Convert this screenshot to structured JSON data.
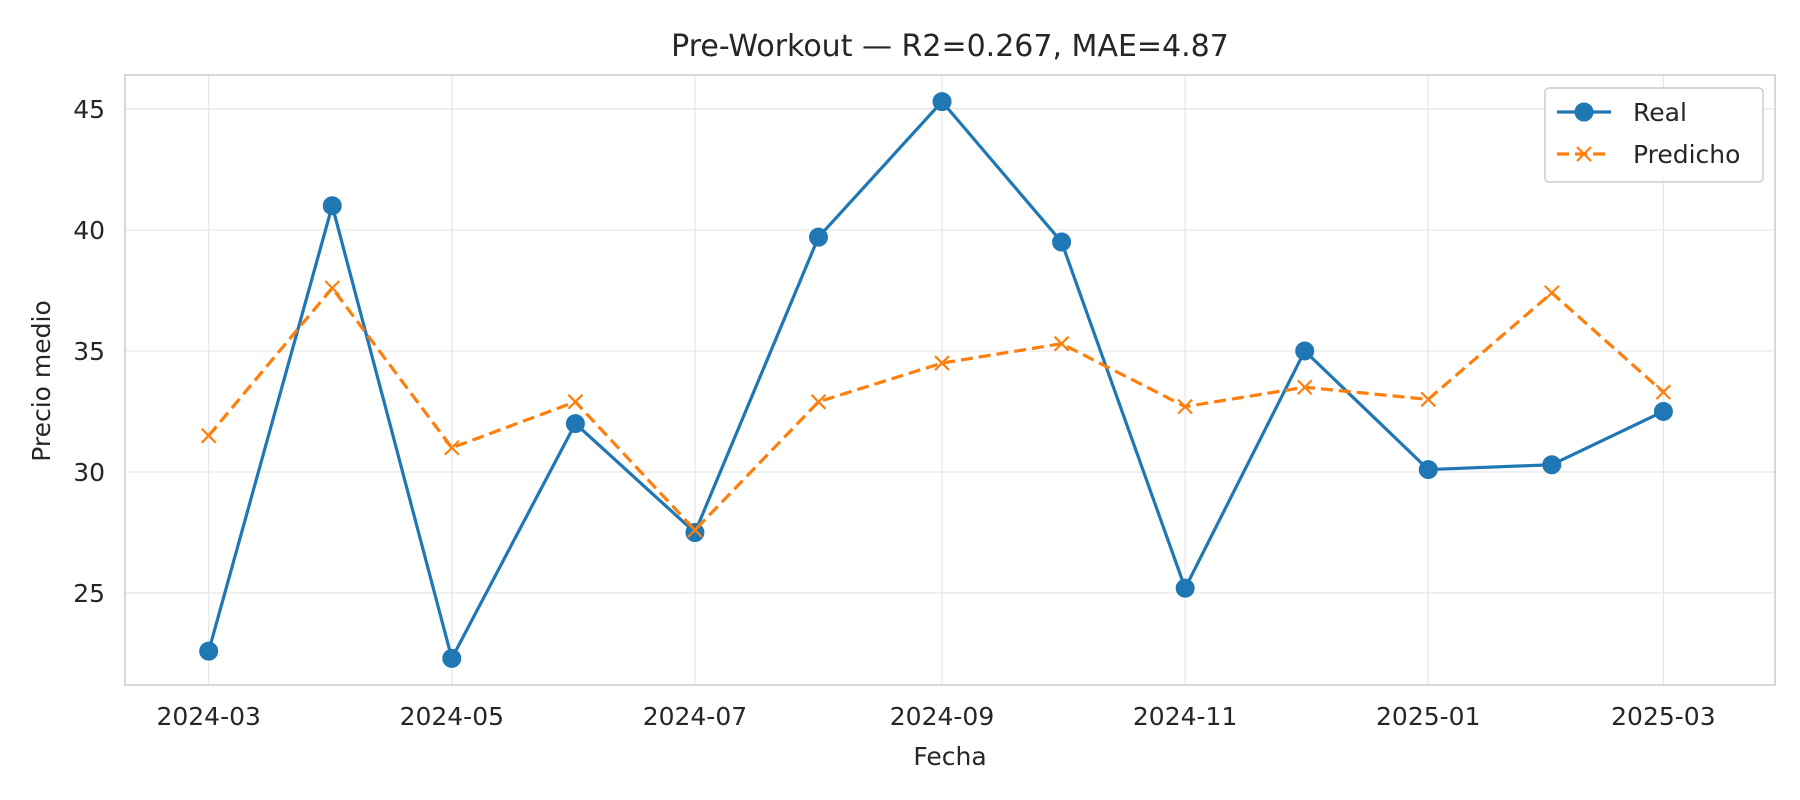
{
  "chart_data": {
    "type": "line",
    "title": "Pre-Workout — R2=0.267, MAE=4.87",
    "xlabel": "Fecha",
    "ylabel": "Precio medio",
    "x": [
      "2024-03-01",
      "2024-04-01",
      "2024-05-01",
      "2024-06-01",
      "2024-07-01",
      "2024-08-01",
      "2024-09-01",
      "2024-10-01",
      "2024-11-01",
      "2024-12-01",
      "2025-01-01",
      "2025-02-01",
      "2025-03-01"
    ],
    "x_ticks": [
      "2024-03",
      "2024-05",
      "2024-07",
      "2024-09",
      "2024-11",
      "2025-01",
      "2025-03"
    ],
    "y_ticks": [
      25,
      30,
      35,
      40,
      45
    ],
    "ylim": [
      21.2,
      46.4
    ],
    "xlim": [
      "2024-02-09",
      "2025-03-29"
    ],
    "grid": true,
    "legend_position": "top-right",
    "series": [
      {
        "name": "Real",
        "color": "#1f77b4",
        "style": "solid",
        "marker": "circle",
        "values": [
          22.6,
          41.0,
          22.3,
          32.0,
          27.5,
          39.7,
          45.3,
          39.5,
          25.2,
          35.0,
          30.1,
          30.3,
          32.5
        ]
      },
      {
        "name": "Predicho",
        "color": "#ff7f0e",
        "style": "dashed",
        "marker": "x",
        "values": [
          31.5,
          37.6,
          31.0,
          32.9,
          27.6,
          32.9,
          34.5,
          35.3,
          32.7,
          33.5,
          33.0,
          37.4,
          33.3
        ]
      }
    ]
  }
}
